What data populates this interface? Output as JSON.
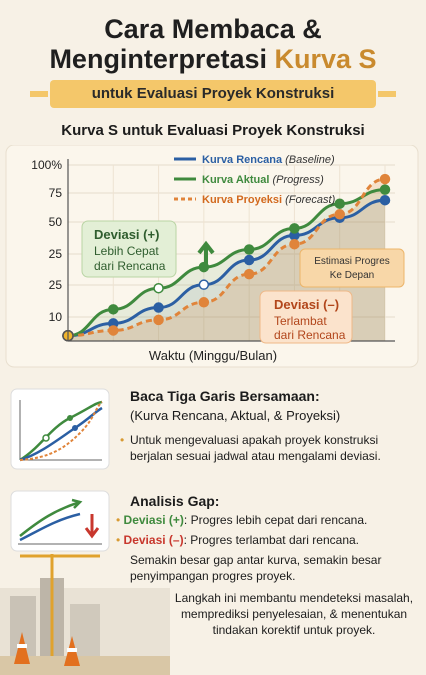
{
  "title": {
    "line1": "Cara Membaca &",
    "line2_prefix": "Menginterpretasi",
    "line2_accent": "Kurva S"
  },
  "subtitle": "untuk Evaluasi Proyek Konstruksi",
  "chart_data": {
    "type": "line",
    "title": "Kurva S untuk Evaluasi Proyek Konstruksi",
    "xlabel": "Waktu (Minggu/Bulan)",
    "ylabel": "",
    "y_ticks": [
      "100%",
      "75",
      "50",
      "25",
      "25",
      "10"
    ],
    "x": [
      1,
      2,
      3,
      4,
      5,
      6,
      7,
      8
    ],
    "series": [
      {
        "name": "Kurva Rencana",
        "note": "(Baseline)",
        "color": "#2b5fa3",
        "values": [
          3,
          10,
          19,
          32,
          46,
          60,
          70,
          80
        ]
      },
      {
        "name": "Kurva Aktual",
        "note": "(Progress)",
        "color": "#3f8a3e",
        "values": [
          3,
          18,
          30,
          42,
          52,
          64,
          78,
          86
        ]
      },
      {
        "name": "Kurva Proyeksi",
        "note": "(Forecast)",
        "color": "#e0843a",
        "values": [
          3,
          6,
          12,
          22,
          38,
          55,
          72,
          92
        ]
      }
    ],
    "annotations": {
      "dev_plus_title": "Deviasi (+)",
      "dev_plus_l1": "Lebih Cepat",
      "dev_plus_l2": "dari Rencana",
      "dev_minus_title": "Deviasi (–)",
      "dev_minus_l1": "Terlambat",
      "dev_minus_l2": "dari Rencana",
      "estimate_l1": "Estimasi Progres",
      "estimate_l2": "Ke Depan"
    },
    "grid": true,
    "legend": "top-right"
  },
  "section1": {
    "title": "Baca Tiga Garis Bersamaan:",
    "subtitle": "(Kurva Rencana, Aktual, & Proyeksi)",
    "text1": "Untuk mengevaluasi apakah proyek konstruksi",
    "text2": "berjalan sesuai jadwal atau mengalami deviasi."
  },
  "section2": {
    "title": "Analisis Gap:",
    "plus_label": "Deviasi (+)",
    "plus_text": ": Progres lebih cepat dari rencana.",
    "minus_label": "Deviasi (–)",
    "minus_text": ": Progres terlambat dari rencana.",
    "gap1": "Semakin besar gap antar kurva, semakin besar",
    "gap2": "penyimpangan progres proyek.",
    "close1": "Langkah ini membantu mendeteksi masalah,",
    "close2": "memprediksi penyelesaian, & menentukan",
    "close3": "tindakan korektif untuk proyek."
  }
}
